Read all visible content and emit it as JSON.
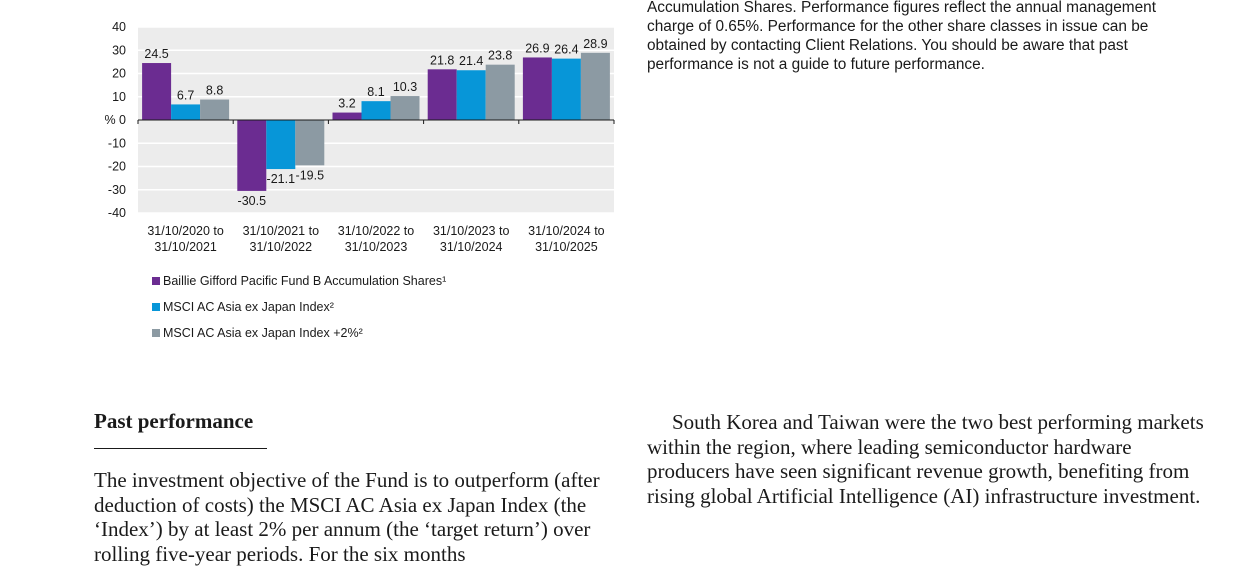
{
  "chart_data": {
    "type": "bar",
    "categories": [
      [
        "31/10/2020 to",
        "31/10/2021"
      ],
      [
        "31/10/2021 to",
        "31/10/2022"
      ],
      [
        "31/10/2022 to",
        "31/10/2023"
      ],
      [
        "31/10/2023 to",
        "31/10/2024"
      ],
      [
        "31/10/2024 to",
        "31/10/2025"
      ]
    ],
    "series": [
      {
        "name": "Baillie Gifford Pacific Fund B Accumulation Shares¹",
        "color": "#6b2c91",
        "values": [
          24.5,
          -30.5,
          3.2,
          21.8,
          26.9
        ]
      },
      {
        "name": "MSCI AC Asia ex Japan Index²",
        "color": "#0796d8",
        "values": [
          6.7,
          -21.1,
          8.1,
          21.4,
          26.4
        ]
      },
      {
        "name": "MSCI AC Asia ex Japan Index +2%²",
        "color": "#8c9aa3",
        "values": [
          8.8,
          -19.5,
          10.3,
          23.8,
          28.9
        ]
      }
    ],
    "ylim": [
      -40,
      40
    ],
    "yticks": [
      "40",
      "30",
      "20",
      "10",
      "% 0",
      "-10",
      "-20",
      "-30",
      "-40"
    ],
    "grid": true,
    "legend_position": "bottom-left"
  },
  "note_text": "Accumulation Shares. Performance figures reflect the annual management charge of 0.65%. Performance for the other share classes in issue can be obtained by contacting Client Relations. You should be aware that past performance is not a guide to future performance.",
  "heading": "Past performance",
  "left_paragraph": "The investment objective of the Fund is to outperform (after deduction of costs) the MSCI AC Asia ex Japan Index (the ‘Index’) by at least 2% per annum (the ‘target return’) over rolling five-year periods. For the six months",
  "right_paragraph": "South Korea and Taiwan were the two best performing markets within the region, where leading semiconductor hardware producers have seen significant revenue growth, benefiting from rising global Artificial Intelligence (AI) infrastructure investment."
}
